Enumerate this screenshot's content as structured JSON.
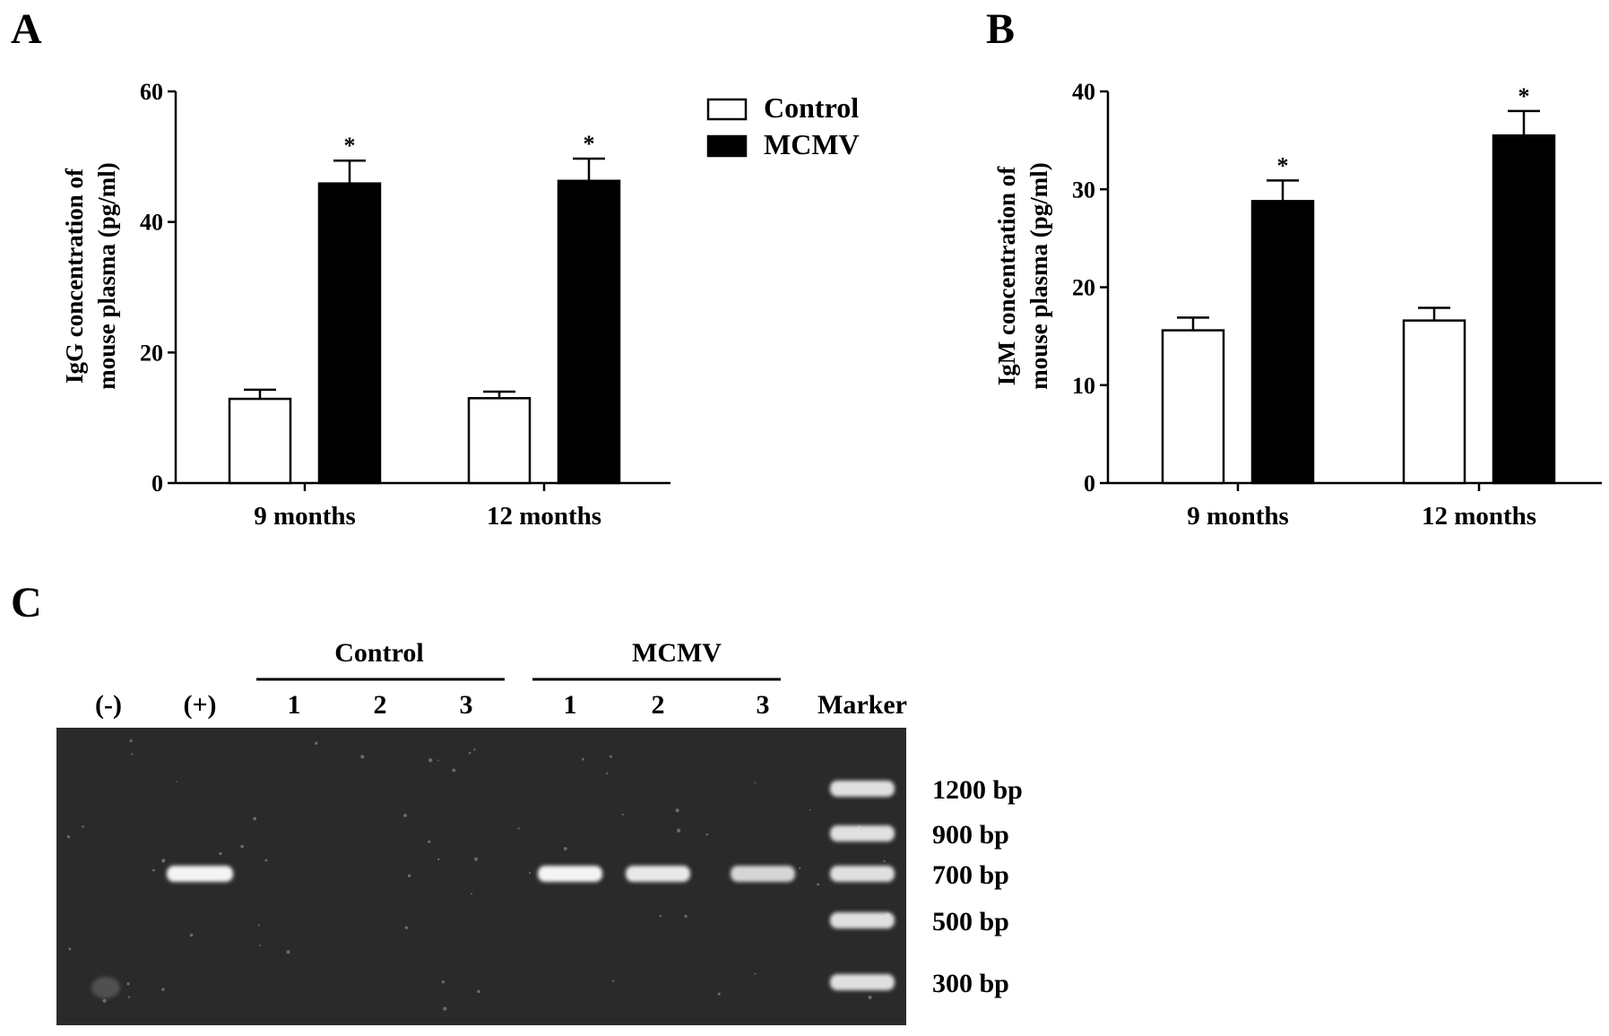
{
  "panels": {
    "a": "A",
    "b": "B",
    "c": "C"
  },
  "legend": {
    "placement": "top-right of panel A",
    "items": [
      {
        "label": "Control",
        "color": "#ffffff"
      },
      {
        "label": "MCMV",
        "color": "#000000"
      }
    ]
  },
  "colors": {
    "control": "#ffffff",
    "mcmv": "#000000",
    "gel_background": "#2a2a2a",
    "band": "#f4f4f4"
  },
  "chart_data": [
    {
      "type": "bar",
      "panel": "A",
      "title": "",
      "xlabel": "",
      "ylabel_line1": "IgG concentration of",
      "ylabel_line2": "mouse plasma (pg/ml)",
      "categories": [
        "9 months",
        "12 months"
      ],
      "ylim": [
        0,
        60
      ],
      "yticks": [
        "0",
        "20",
        "40",
        "60"
      ],
      "series": [
        {
          "name": "Control",
          "values": [
            12.9,
            13.0
          ],
          "errors": [
            1.4,
            1.0
          ],
          "significance": [
            "",
            ""
          ]
        },
        {
          "name": "MCMV",
          "values": [
            45.9,
            46.3
          ],
          "errors": [
            3.5,
            3.4
          ],
          "significance": [
            "*",
            "*"
          ]
        }
      ],
      "grid": false
    },
    {
      "type": "bar",
      "panel": "B",
      "title": "",
      "xlabel": "",
      "ylabel_line1": "IgM concentration of",
      "ylabel_line2": "mouse plasma (pg/ml)",
      "categories": [
        "9 months",
        "12 months"
      ],
      "ylim": [
        0,
        40
      ],
      "yticks": [
        "0",
        "10",
        "20",
        "30",
        "40"
      ],
      "series": [
        {
          "name": "Control",
          "values": [
            15.6,
            16.6
          ],
          "errors": [
            1.3,
            1.3
          ],
          "significance": [
            "",
            ""
          ]
        },
        {
          "name": "MCMV",
          "values": [
            28.8,
            35.5
          ],
          "errors": [
            2.1,
            2.5
          ],
          "significance": [
            "*",
            "*"
          ]
        }
      ],
      "grid": false
    }
  ],
  "gel": {
    "group_labels": [
      "Control",
      "MCMV"
    ],
    "lane_labels": [
      "(-)",
      "(+)",
      "1",
      "2",
      "3",
      "1",
      "2",
      "3",
      "Marker"
    ],
    "marker_labels": [
      "1200 bp",
      "900 bp",
      "700 bp",
      "500 bp",
      "300 bp"
    ],
    "marker_sizes_bp": [
      1200,
      900,
      700,
      500,
      300
    ],
    "sample_band_bp": 700,
    "lanes_with_band": [
      false,
      true,
      false,
      false,
      false,
      true,
      true,
      true,
      true
    ],
    "band_intensity": [
      0,
      1.0,
      0,
      0,
      0,
      1.0,
      0.95,
      0.85,
      1.0
    ]
  }
}
